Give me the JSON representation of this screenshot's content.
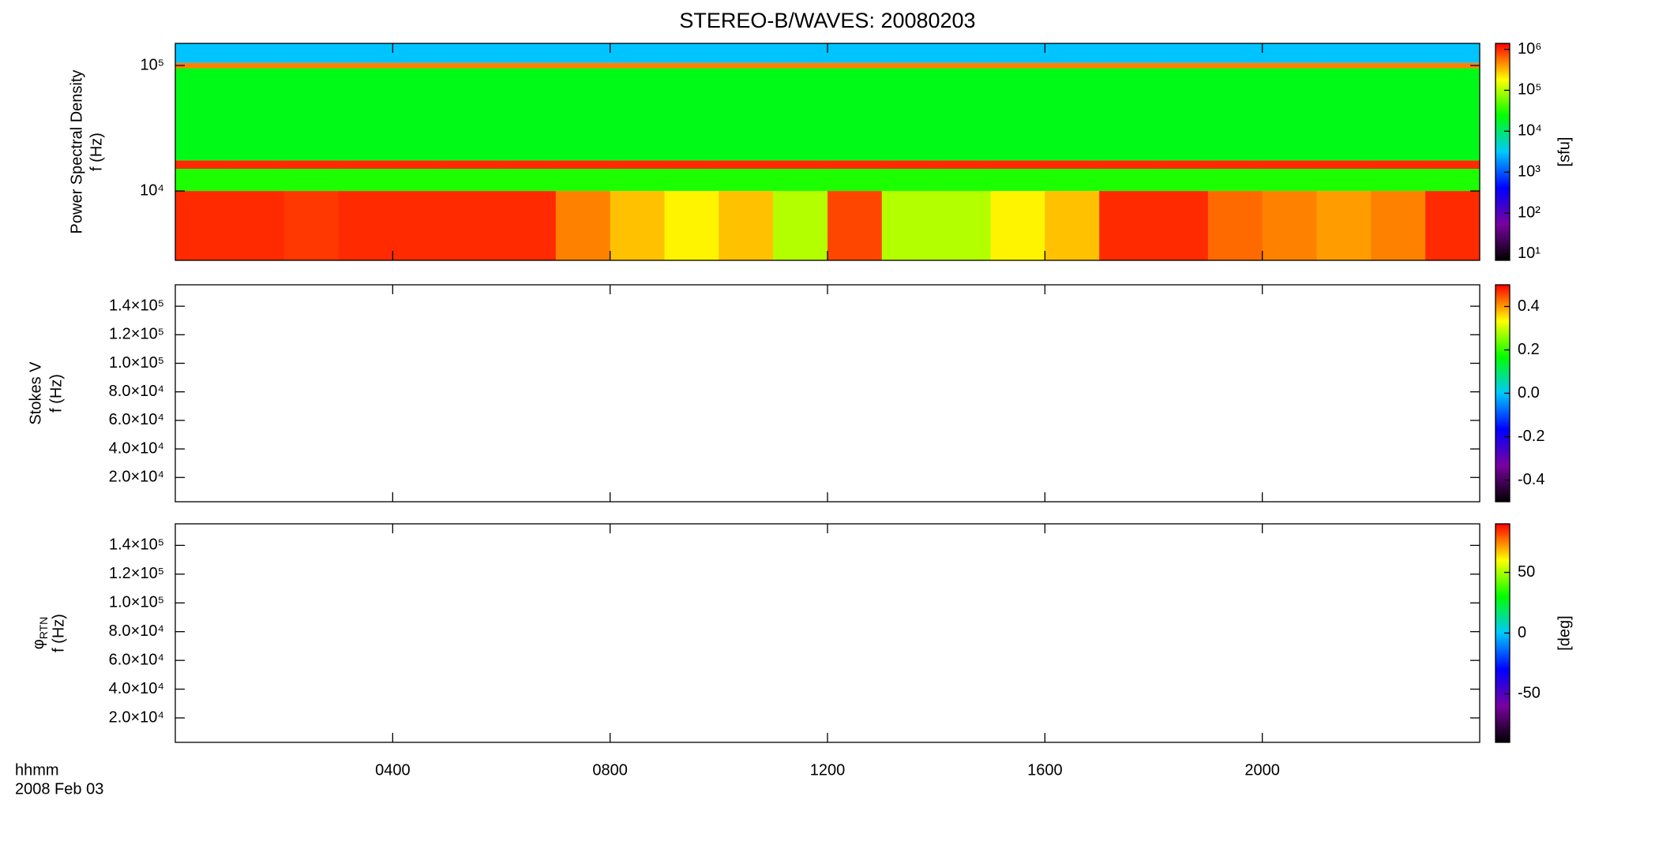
{
  "chart_data": [
    {
      "type": "heatmap",
      "title": "STEREO-B/WAVES: 20080203",
      "ylabel": [
        "Power Spectral Density",
        "f (Hz)"
      ],
      "ylog": true,
      "ylim": [
        2800,
        150000
      ],
      "yticks": [
        {
          "value": 10000,
          "label": "10⁴"
        },
        {
          "value": 100000,
          "label": "10⁵"
        }
      ],
      "x": [
        0,
        1,
        2,
        3,
        4,
        5,
        6,
        7,
        8,
        9,
        10,
        11,
        12,
        13,
        14,
        15,
        16,
        17,
        18,
        19,
        20,
        21,
        22,
        23,
        24
      ],
      "y": [
        2800,
        10000,
        15000,
        17500,
        95000,
        105000,
        150000
      ],
      "values": [
        [
          1000000,
          1000000,
          900000,
          1000000,
          1000000,
          1000000,
          1000000,
          500000,
          300000,
          200000,
          300000,
          100000,
          800000,
          100000,
          100000,
          200000,
          300000,
          1000000,
          1000000,
          600000,
          500000,
          400000,
          500000,
          1000000
        ],
        [
          30000,
          30000,
          30000,
          30000,
          30000,
          30000,
          30000,
          30000,
          30000,
          30000,
          30000,
          30000,
          30000,
          30000,
          30000,
          30000,
          30000,
          30000,
          30000,
          30000,
          30000,
          30000,
          30000,
          30000
        ],
        [
          1000000,
          1000000,
          1000000,
          1000000,
          1000000,
          1000000,
          1000000,
          1000000,
          1000000,
          1000000,
          1000000,
          1000000,
          1000000,
          1000000,
          1000000,
          1000000,
          1000000,
          1000000,
          1000000,
          1000000,
          1000000,
          1000000,
          1000000,
          1000000
        ],
        [
          20000,
          20000,
          20000,
          20000,
          20000,
          20000,
          20000,
          20000,
          20000,
          20000,
          20000,
          20000,
          20000,
          20000,
          20000,
          20000,
          20000,
          20000,
          20000,
          20000,
          20000,
          20000,
          20000,
          20000
        ],
        [
          500000,
          500000,
          500000,
          500000,
          500000,
          500000,
          500000,
          500000,
          500000,
          500000,
          500000,
          500000,
          500000,
          500000,
          500000,
          500000,
          500000,
          500000,
          500000,
          500000,
          500000,
          500000,
          500000,
          500000
        ],
        [
          3000,
          3000,
          3000,
          3000,
          3000,
          3000,
          3000,
          3000,
          3000,
          3000,
          3000,
          3000,
          3000,
          3000,
          3000,
          3000,
          3000,
          3000,
          3000,
          3000,
          3000,
          3000,
          3000,
          3000
        ]
      ],
      "colormap": [
        "#000000",
        "#7a00a0",
        "#0000ff",
        "#00c8ff",
        "#00ff00",
        "#ffff00",
        "#ff0000"
      ],
      "colorbar": {
        "log": true,
        "lim": [
          7,
          1400000
        ],
        "label": "[sfu]",
        "ticks": [
          {
            "value": 10,
            "label": "10¹"
          },
          {
            "value": 100,
            "label": "10²"
          },
          {
            "value": 1000,
            "label": "10³"
          },
          {
            "value": 10000,
            "label": "10⁴"
          },
          {
            "value": 100000,
            "label": "10⁵"
          },
          {
            "value": 1000000,
            "label": "10⁶"
          }
        ]
      }
    },
    {
      "type": "heatmap",
      "ylabel": [
        "Stokes V",
        "f (Hz)"
      ],
      "ylim": [
        3000,
        155000
      ],
      "yticks": [
        {
          "value": 20000,
          "label": "2.0×10⁴"
        },
        {
          "value": 40000,
          "label": "4.0×10⁴"
        },
        {
          "value": 60000,
          "label": "6.0×10⁴"
        },
        {
          "value": 80000,
          "label": "8.0×10⁴"
        },
        {
          "value": 100000,
          "label": "1.0×10⁵"
        },
        {
          "value": 120000,
          "label": "1.2×10⁵"
        },
        {
          "value": 140000,
          "label": "1.4×10⁵"
        }
      ],
      "colormap": [
        "#000000",
        "#7a00a0",
        "#0000ff",
        "#00c8ff",
        "#00ff00",
        "#ffff00",
        "#ff0000"
      ],
      "colorbar": {
        "lim": [
          -0.5,
          0.5
        ],
        "ticks": [
          -0.4,
          -0.2,
          {
            "value": 0,
            "label": "0.0"
          },
          0.2,
          0.4
        ]
      }
    },
    {
      "type": "heatmap",
      "ylabel_symbol": "φ",
      "ylabel_subscript": "RTN",
      "ylabel": [
        "f (Hz)"
      ],
      "ylim": [
        3000,
        155000
      ],
      "yticks": [
        {
          "value": 20000,
          "label": "2.0×10⁴"
        },
        {
          "value": 40000,
          "label": "4.0×10⁴"
        },
        {
          "value": 60000,
          "label": "6.0×10⁴"
        },
        {
          "value": 80000,
          "label": "8.0×10⁴"
        },
        {
          "value": 100000,
          "label": "1.0×10⁵"
        },
        {
          "value": 120000,
          "label": "1.2×10⁵"
        },
        {
          "value": 140000,
          "label": "1.4×10⁵"
        }
      ],
      "colormap": [
        "#000000",
        "#7a00a0",
        "#0000ff",
        "#00c8ff",
        "#00ff00",
        "#ffff00",
        "#ff0000"
      ],
      "colorbar": {
        "lim": [
          -90,
          90
        ],
        "label": "[deg]",
        "ticks": [
          -50,
          0,
          50
        ]
      },
      "x_label": "hhmm",
      "date": "2008 Feb 03",
      "xlim": [
        0,
        24
      ],
      "xticks": [
        {
          "value": 4,
          "label": "0400"
        },
        {
          "value": 8,
          "label": "0800"
        },
        {
          "value": 12,
          "label": "1200"
        },
        {
          "value": 16,
          "label": "1600"
        },
        {
          "value": 20,
          "label": "2000"
        }
      ]
    }
  ]
}
